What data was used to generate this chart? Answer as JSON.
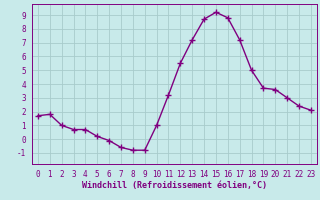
{
  "x": [
    0,
    1,
    2,
    3,
    4,
    5,
    6,
    7,
    8,
    9,
    10,
    11,
    12,
    13,
    14,
    15,
    16,
    17,
    18,
    19,
    20,
    21,
    22,
    23
  ],
  "y": [
    1.7,
    1.8,
    1.0,
    0.7,
    0.7,
    0.2,
    -0.1,
    -0.6,
    -0.8,
    -0.8,
    1.0,
    3.2,
    5.5,
    7.2,
    8.7,
    9.2,
    8.8,
    7.2,
    5.0,
    3.7,
    3.6,
    3.0,
    2.4,
    2.1
  ],
  "line_color": "#800080",
  "marker": "+",
  "marker_size": 4,
  "line_width": 1.0,
  "bg_color": "#c8eaea",
  "grid_color": "#a8cccc",
  "xlabel": "Windchill (Refroidissement éolien,°C)",
  "xlabel_fontsize": 6.0,
  "tick_fontsize": 5.5,
  "xlim": [
    -0.5,
    23.5
  ],
  "ylim": [
    -1.8,
    9.8
  ],
  "yticks": [
    -1,
    0,
    1,
    2,
    3,
    4,
    5,
    6,
    7,
    8,
    9
  ],
  "xticks": [
    0,
    1,
    2,
    3,
    4,
    5,
    6,
    7,
    8,
    9,
    10,
    11,
    12,
    13,
    14,
    15,
    16,
    17,
    18,
    19,
    20,
    21,
    22,
    23
  ]
}
